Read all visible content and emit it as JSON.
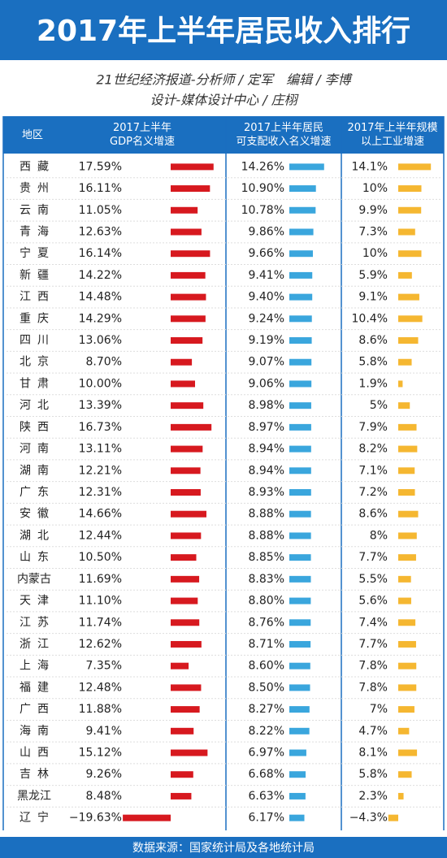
{
  "chart_data": {
    "type": "table-bar",
    "title": "2017年上半年居民收入排行",
    "subtitle": [
      "21世纪经济报道-分析师 / 定军　编辑 / 李博",
      "设计-媒体设计中心 / 庄栩"
    ],
    "category_header": "地区",
    "categories": [
      "西藏",
      "贵州",
      "云南",
      "青海",
      "宁夏",
      "新疆",
      "江西",
      "重庆",
      "四川",
      "北京",
      "甘肃",
      "河北",
      "陕西",
      "河南",
      "湖南",
      "广东",
      "安徽",
      "湖北",
      "山东",
      "内蒙古",
      "天津",
      "江苏",
      "浙江",
      "上海",
      "福建",
      "广西",
      "海南",
      "山西",
      "吉林",
      "黑龙江",
      "辽宁"
    ],
    "series": [
      {
        "name": "2017上半年\nGDP名义增速",
        "color": "#d7191f",
        "values": [
          17.59,
          16.11,
          11.05,
          12.63,
          16.14,
          14.22,
          14.48,
          14.29,
          13.06,
          8.7,
          10.0,
          13.39,
          16.73,
          13.11,
          12.21,
          12.31,
          14.66,
          12.44,
          10.5,
          11.69,
          11.1,
          11.74,
          12.62,
          7.35,
          12.48,
          11.88,
          9.41,
          15.12,
          9.26,
          8.48,
          -19.63
        ],
        "value_labels": [
          "17.59%",
          "16.11%",
          "11.05%",
          "12.63%",
          "16.14%",
          "14.22%",
          "14.48%",
          "14.29%",
          "13.06%",
          "8.70%",
          "10.00%",
          "13.39%",
          "16.73%",
          "13.11%",
          "12.21%",
          "12.31%",
          "14.66%",
          "12.44%",
          "10.50%",
          "11.69%",
          "11.10%",
          "11.74%",
          "12.62%",
          "7.35%",
          "12.48%",
          "11.88%",
          "9.41%",
          "15.12%",
          "9.26%",
          "8.48%",
          "−19.63%"
        ]
      },
      {
        "name": "2017上半年居民\n可支配收入名义增速",
        "color": "#3aa6dd",
        "values": [
          14.26,
          10.9,
          10.78,
          9.86,
          9.66,
          9.41,
          9.4,
          9.24,
          9.19,
          9.07,
          9.06,
          8.98,
          8.97,
          8.94,
          8.94,
          8.93,
          8.88,
          8.88,
          8.85,
          8.83,
          8.8,
          8.76,
          8.71,
          8.6,
          8.5,
          8.27,
          8.22,
          6.97,
          6.68,
          6.63,
          6.17
        ],
        "value_labels": [
          "14.26%",
          "10.90%",
          "10.78%",
          "9.86%",
          "9.66%",
          "9.41%",
          "9.40%",
          "9.24%",
          "9.19%",
          "9.07%",
          "9.06%",
          "8.98%",
          "8.97%",
          "8.94%",
          "8.94%",
          "8.93%",
          "8.88%",
          "8.88%",
          "8.85%",
          "8.83%",
          "8.80%",
          "8.76%",
          "8.71%",
          "8.60%",
          "8.50%",
          "8.27%",
          "8.22%",
          "6.97%",
          "6.68%",
          "6.63%",
          "6.17%"
        ]
      },
      {
        "name": "2017年上半年规模\n以上工业增速",
        "color": "#f5b731",
        "values": [
          14.1,
          10,
          9.9,
          7.3,
          10,
          5.9,
          9.1,
          10.4,
          8.6,
          5.8,
          1.9,
          5,
          7.9,
          8.2,
          7.1,
          7.2,
          8.6,
          8,
          7.7,
          5.5,
          5.6,
          7.4,
          7.7,
          7.8,
          7.8,
          7,
          4.7,
          8.1,
          5.8,
          2.3,
          -4.3
        ],
        "value_labels": [
          "14.1%",
          "10%",
          "9.9%",
          "7.3%",
          "10%",
          "5.9%",
          "9.1%",
          "10.4%",
          "8.6%",
          "5.8%",
          "1.9%",
          "5%",
          "7.9%",
          "8.2%",
          "7.1%",
          "7.2%",
          "8.6%",
          "8%",
          "7.7%",
          "5.5%",
          "5.6%",
          "7.4%",
          "7.7%",
          "7.8%",
          "7.8%",
          "7%",
          "4.7%",
          "8.1%",
          "5.8%",
          "2.3%",
          "−4.3%"
        ]
      }
    ],
    "source": "数据来源：国家统计局及各地统计局"
  }
}
